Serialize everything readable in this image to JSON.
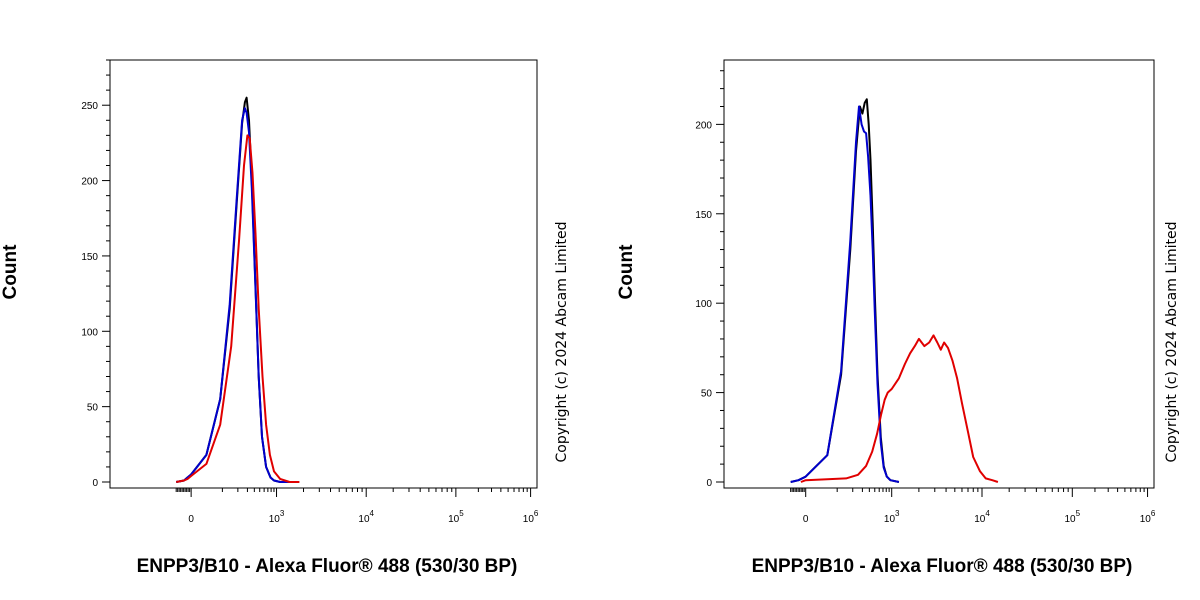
{
  "chart_data": [
    {
      "type": "line",
      "xlabel": "ENPP3/B10 - Alexa Fluor® 488 (530/30 BP)",
      "ylabel": "Count",
      "copyright": "Copyright (c) 2024 Abcam Limited",
      "x_scale": "biexponential",
      "x_ticks": [
        {
          "value": 0,
          "base": "0",
          "exp": ""
        },
        {
          "value": 1000,
          "base": "10",
          "exp": "3"
        },
        {
          "value": 10000,
          "base": "10",
          "exp": "4"
        },
        {
          "value": 100000,
          "base": "10",
          "exp": "5"
        },
        {
          "value": 1000000,
          "base": "10",
          "exp": "6"
        }
      ],
      "ylim": [
        0,
        280
      ],
      "y_ticks": [
        0,
        50,
        100,
        150,
        200,
        250
      ],
      "series": [
        {
          "color": "#000000",
          "x": [
            -250,
            -120,
            -60,
            0,
            40,
            90,
            140,
            190,
            240,
            270,
            290,
            320,
            360,
            420,
            480,
            550,
            650,
            780,
            900,
            1100,
            1500
          ],
          "y": [
            0,
            1,
            3,
            5,
            18,
            55,
            115,
            185,
            238,
            252,
            255,
            240,
            200,
            130,
            70,
            30,
            10,
            3,
            1,
            0,
            0
          ]
        },
        {
          "color": "#0000cc",
          "x": [
            -250,
            -120,
            -60,
            0,
            40,
            90,
            140,
            190,
            240,
            270,
            290,
            320,
            360,
            420,
            480,
            550,
            650,
            780,
            900,
            1100,
            1500
          ],
          "y": [
            0,
            1,
            3,
            5,
            18,
            55,
            118,
            188,
            240,
            248,
            245,
            232,
            195,
            128,
            70,
            30,
            10,
            3,
            1,
            0,
            0
          ]
        },
        {
          "color": "#e00000",
          "x": [
            -250,
            -120,
            -60,
            0,
            40,
            90,
            150,
            210,
            260,
            300,
            330,
            370,
            420,
            480,
            560,
            650,
            760,
            900,
            1100,
            1400,
            1800
          ],
          "y": [
            0,
            1,
            2,
            4,
            12,
            38,
            90,
            160,
            210,
            230,
            228,
            205,
            165,
            115,
            70,
            38,
            18,
            7,
            2,
            0,
            0
          ]
        }
      ]
    },
    {
      "type": "line",
      "xlabel": "ENPP3/B10 - Alexa Fluor® 488 (530/30 BP)",
      "ylabel": "Count",
      "copyright": "Copyright (c) 2024 Abcam Limited",
      "x_scale": "biexponential",
      "x_ticks": [
        {
          "value": 0,
          "base": "0",
          "exp": ""
        },
        {
          "value": 1000,
          "base": "10",
          "exp": "3"
        },
        {
          "value": 10000,
          "base": "10",
          "exp": "4"
        },
        {
          "value": 100000,
          "base": "10",
          "exp": "5"
        },
        {
          "value": 1000000,
          "base": "10",
          "exp": "6"
        }
      ],
      "ylim": [
        0,
        236
      ],
      "y_ticks": [
        0,
        50,
        100,
        150,
        200
      ],
      "series": [
        {
          "color": "#000000",
          "x": [
            -250,
            -120,
            0,
            60,
            120,
            180,
            230,
            270,
            300,
            330,
            360,
            390,
            420,
            460,
            500,
            560,
            640,
            720,
            820,
            950,
            1200
          ],
          "y": [
            0,
            1,
            3,
            15,
            60,
            130,
            185,
            210,
            206,
            212,
            214,
            200,
            180,
            145,
            105,
            60,
            25,
            9,
            3,
            1,
            0
          ]
        },
        {
          "color": "#0000cc",
          "x": [
            -250,
            -120,
            0,
            60,
            120,
            180,
            230,
            260,
            290,
            320,
            350,
            380,
            420,
            460,
            500,
            560,
            640,
            720,
            820,
            950,
            1200
          ],
          "y": [
            0,
            1,
            3,
            15,
            62,
            135,
            190,
            210,
            200,
            196,
            195,
            182,
            160,
            130,
            95,
            55,
            22,
            8,
            3,
            1,
            0
          ]
        },
        {
          "color": "#e00000",
          "x": [
            -80,
            0,
            150,
            250,
            350,
            450,
            550,
            650,
            750,
            850,
            1000,
            1200,
            1400,
            1600,
            1800,
            2000,
            2300,
            2600,
            2900,
            3200,
            3500,
            3800,
            4200,
            4700,
            5300,
            6000,
            7000,
            8000,
            9500,
            11000,
            13000,
            15000
          ],
          "y": [
            0,
            1,
            2,
            4,
            9,
            17,
            27,
            38,
            46,
            50,
            52,
            58,
            66,
            72,
            76,
            80,
            76,
            78,
            82,
            78,
            74,
            78,
            75,
            68,
            58,
            44,
            28,
            14,
            6,
            2,
            1,
            0
          ]
        }
      ]
    }
  ]
}
